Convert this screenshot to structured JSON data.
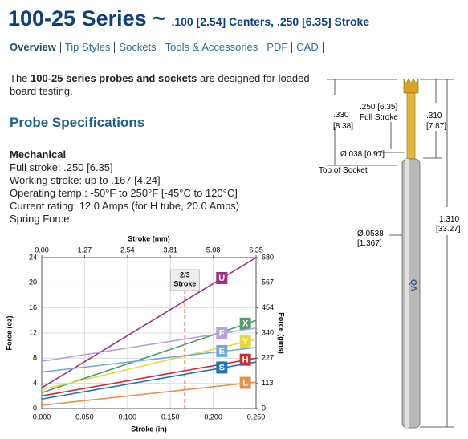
{
  "header": {
    "title": "100-25 Series ~",
    "subtitle": ".100 [2.54] Centers, .250 [6.35] Stroke"
  },
  "nav": [
    "Overview",
    "Tip Styles",
    "Sockets",
    "Tools & Accessories",
    "PDF",
    "CAD"
  ],
  "intro": [
    "The ",
    "100-25 series probes and sockets",
    " are designed for loaded board testing."
  ],
  "specs_title": "Probe Specifications",
  "mechanical": [
    "Mechanical",
    "Full stroke: .250 [6.35]",
    "Working stroke: up to .167 [4.24]",
    "Operating temp.: -50°F to 250°F [-45°C to 120°C]",
    "Current rating: 12.0 Amps (for H tube, 20.0 Amps)",
    "Spring Force:"
  ],
  "diagram": {
    "labels": [
      [
        ".330",
        "[8.38]"
      ],
      [
        ".250 [6.35]",
        "Full Stroke"
      ],
      [
        ".310",
        "[7.87]"
      ],
      [
        "Ø.038 [0.97]"
      ],
      [
        "Top of Socket"
      ],
      [
        "Ø.0538",
        "[1.367]"
      ],
      [
        "1.310",
        "[33.27]"
      ]
    ]
  },
  "chart_data": {
    "type": "line",
    "x_label": "Stroke (in)",
    "x2_label": "Stroke (mm)",
    "y_label": "Force (oz)",
    "y2_label": "Force (gms)",
    "x": [
      0,
      0.25
    ],
    "xlim": [
      0,
      0.25
    ],
    "xticks": [
      {
        "value": 0,
        "label": "0.000"
      },
      {
        "value": 0.05,
        "label": "0.050"
      },
      {
        "value": 0.1,
        "label": "0.100"
      },
      {
        "value": 0.15,
        "label": "0.150"
      },
      {
        "value": 0.2,
        "label": "0.200"
      },
      {
        "value": 0.25,
        "label": "0.250"
      }
    ],
    "x2lim": [
      0,
      6.35
    ],
    "x2ticks": [
      {
        "value": 0,
        "label": "0.00"
      },
      1.27,
      2.54,
      3.81,
      5.08,
      6.35
    ],
    "ylim": [
      0,
      24
    ],
    "yticks": [
      0,
      4,
      8,
      12,
      16,
      20,
      24
    ],
    "y2lim": [
      0,
      680
    ],
    "y2ticks": [
      0,
      113,
      227,
      340,
      454,
      567,
      680
    ],
    "grid": true,
    "annotation": {
      "lines": [
        "2/3",
        "Stroke"
      ],
      "x": 0.167
    },
    "series": [
      {
        "name": "U",
        "color": "#9c2f7f",
        "values": [
          3.3,
          24
        ]
      },
      {
        "name": "X",
        "color": "#4a9e6a",
        "values": [
          2.5,
          14
        ]
      },
      {
        "name": "F",
        "color": "#b7a0dc",
        "values": [
          7.5,
          12.8
        ]
      },
      {
        "name": "Y",
        "color": "#e9d83c",
        "values": [
          3,
          11
        ]
      },
      {
        "name": "E",
        "color": "#72aadc",
        "values": [
          5.8,
          9.7
        ]
      },
      {
        "name": "H",
        "color": "#d9272e",
        "values": [
          2,
          8
        ]
      },
      {
        "name": "S",
        "color": "#1b75bc",
        "values": [
          1.5,
          7.4
        ]
      },
      {
        "name": "L",
        "color": "#e8904f",
        "values": [
          0.5,
          4.2
        ]
      }
    ]
  }
}
